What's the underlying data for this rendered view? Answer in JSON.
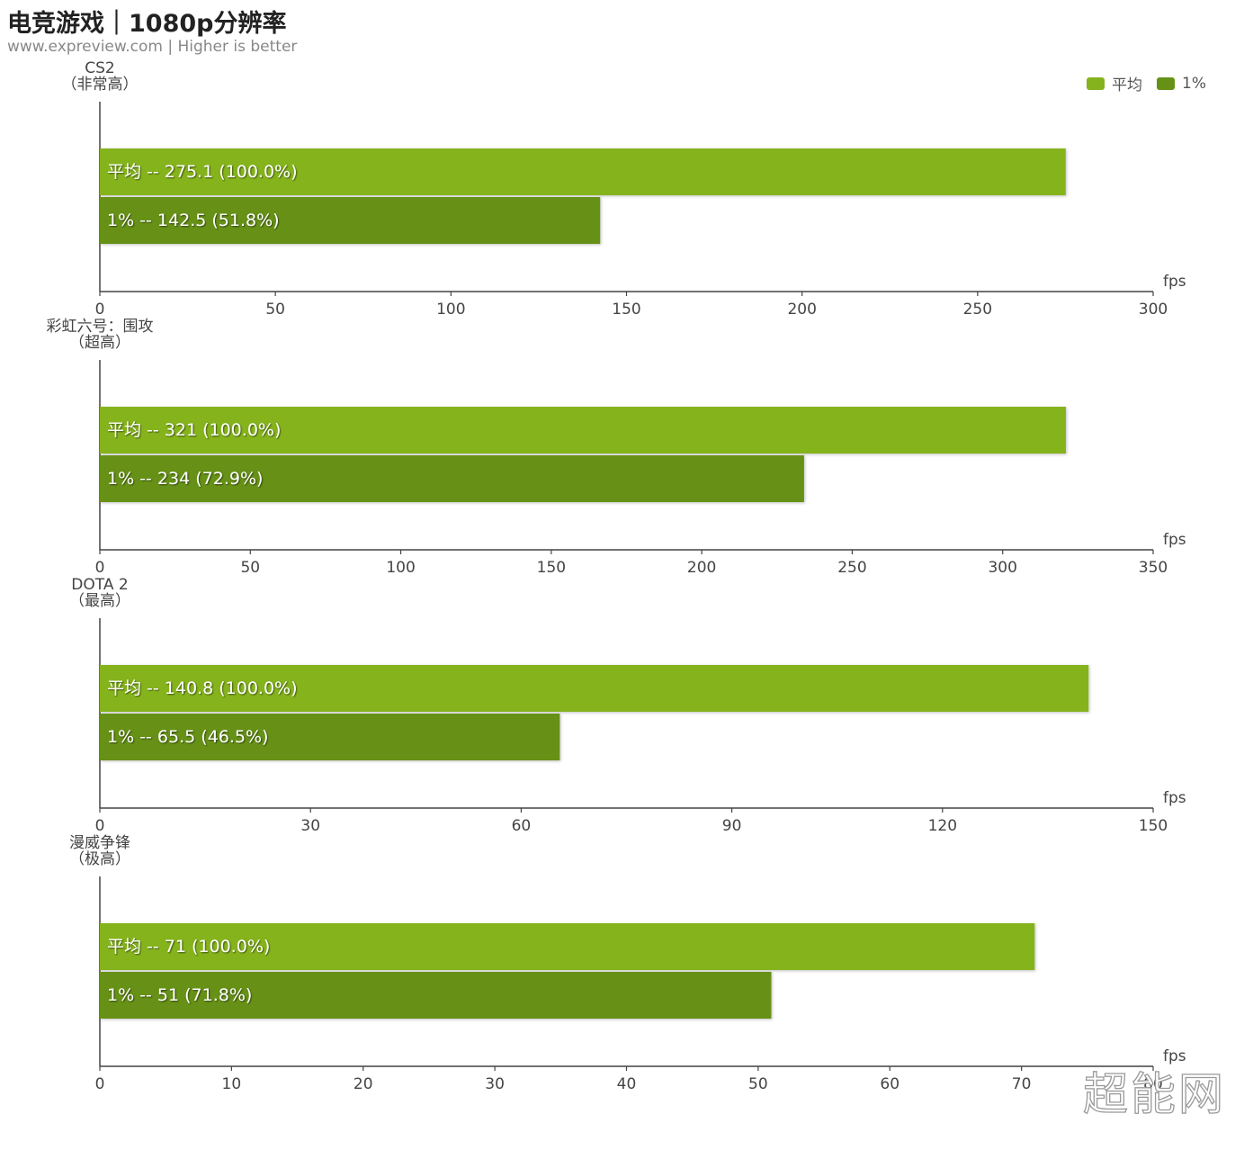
{
  "title": "电竞游戏｜1080p分辨率",
  "subtitle": "www.expreview.com | Higher is better",
  "legend": [
    {
      "label": "平均",
      "color": "#85b31d"
    },
    {
      "label": "1%",
      "color": "#669117"
    }
  ],
  "watermark": "超能网",
  "chart_data": [
    {
      "type": "bar",
      "orientation": "horizontal",
      "title": "CS2",
      "subtitle": "（非常高）",
      "unit": "fps",
      "xlim": [
        0,
        300
      ],
      "ticks": [
        0,
        50,
        100,
        150,
        200,
        250,
        300
      ],
      "series": [
        {
          "name": "平均",
          "value": 275.1,
          "label": "平均  --  275.1 (100.0%)",
          "color": "#85b31d"
        },
        {
          "name": "1%",
          "value": 142.5,
          "label": "1%  --  142.5 (51.8%)",
          "color": "#669117"
        }
      ]
    },
    {
      "type": "bar",
      "orientation": "horizontal",
      "title": "彩虹六号：围攻",
      "subtitle": "（超高）",
      "unit": "fps",
      "xlim": [
        0,
        350
      ],
      "ticks": [
        0,
        50,
        100,
        150,
        200,
        250,
        300,
        350
      ],
      "series": [
        {
          "name": "平均",
          "value": 321,
          "label": "平均  --  321 (100.0%)",
          "color": "#85b31d"
        },
        {
          "name": "1%",
          "value": 234,
          "label": "1%  --  234 (72.9%)",
          "color": "#669117"
        }
      ]
    },
    {
      "type": "bar",
      "orientation": "horizontal",
      "title": "DOTA 2",
      "subtitle": "（最高）",
      "unit": "fps",
      "xlim": [
        0,
        150
      ],
      "ticks": [
        0,
        30,
        60,
        90,
        120,
        150
      ],
      "series": [
        {
          "name": "平均",
          "value": 140.8,
          "label": "平均  --  140.8 (100.0%)",
          "color": "#85b31d"
        },
        {
          "name": "1%",
          "value": 65.5,
          "label": "1%  --  65.5 (46.5%)",
          "color": "#669117"
        }
      ]
    },
    {
      "type": "bar",
      "orientation": "horizontal",
      "title": "漫威争锋",
      "subtitle": "（极高）",
      "unit": "fps",
      "xlim": [
        0,
        80
      ],
      "ticks": [
        0,
        10,
        20,
        30,
        40,
        50,
        60,
        70,
        80
      ],
      "series": [
        {
          "name": "平均",
          "value": 71,
          "label": "平均  --  71 (100.0%)",
          "color": "#85b31d"
        },
        {
          "name": "1%",
          "value": 51,
          "label": "1%  --  51 (71.8%)",
          "color": "#669117"
        }
      ]
    }
  ]
}
